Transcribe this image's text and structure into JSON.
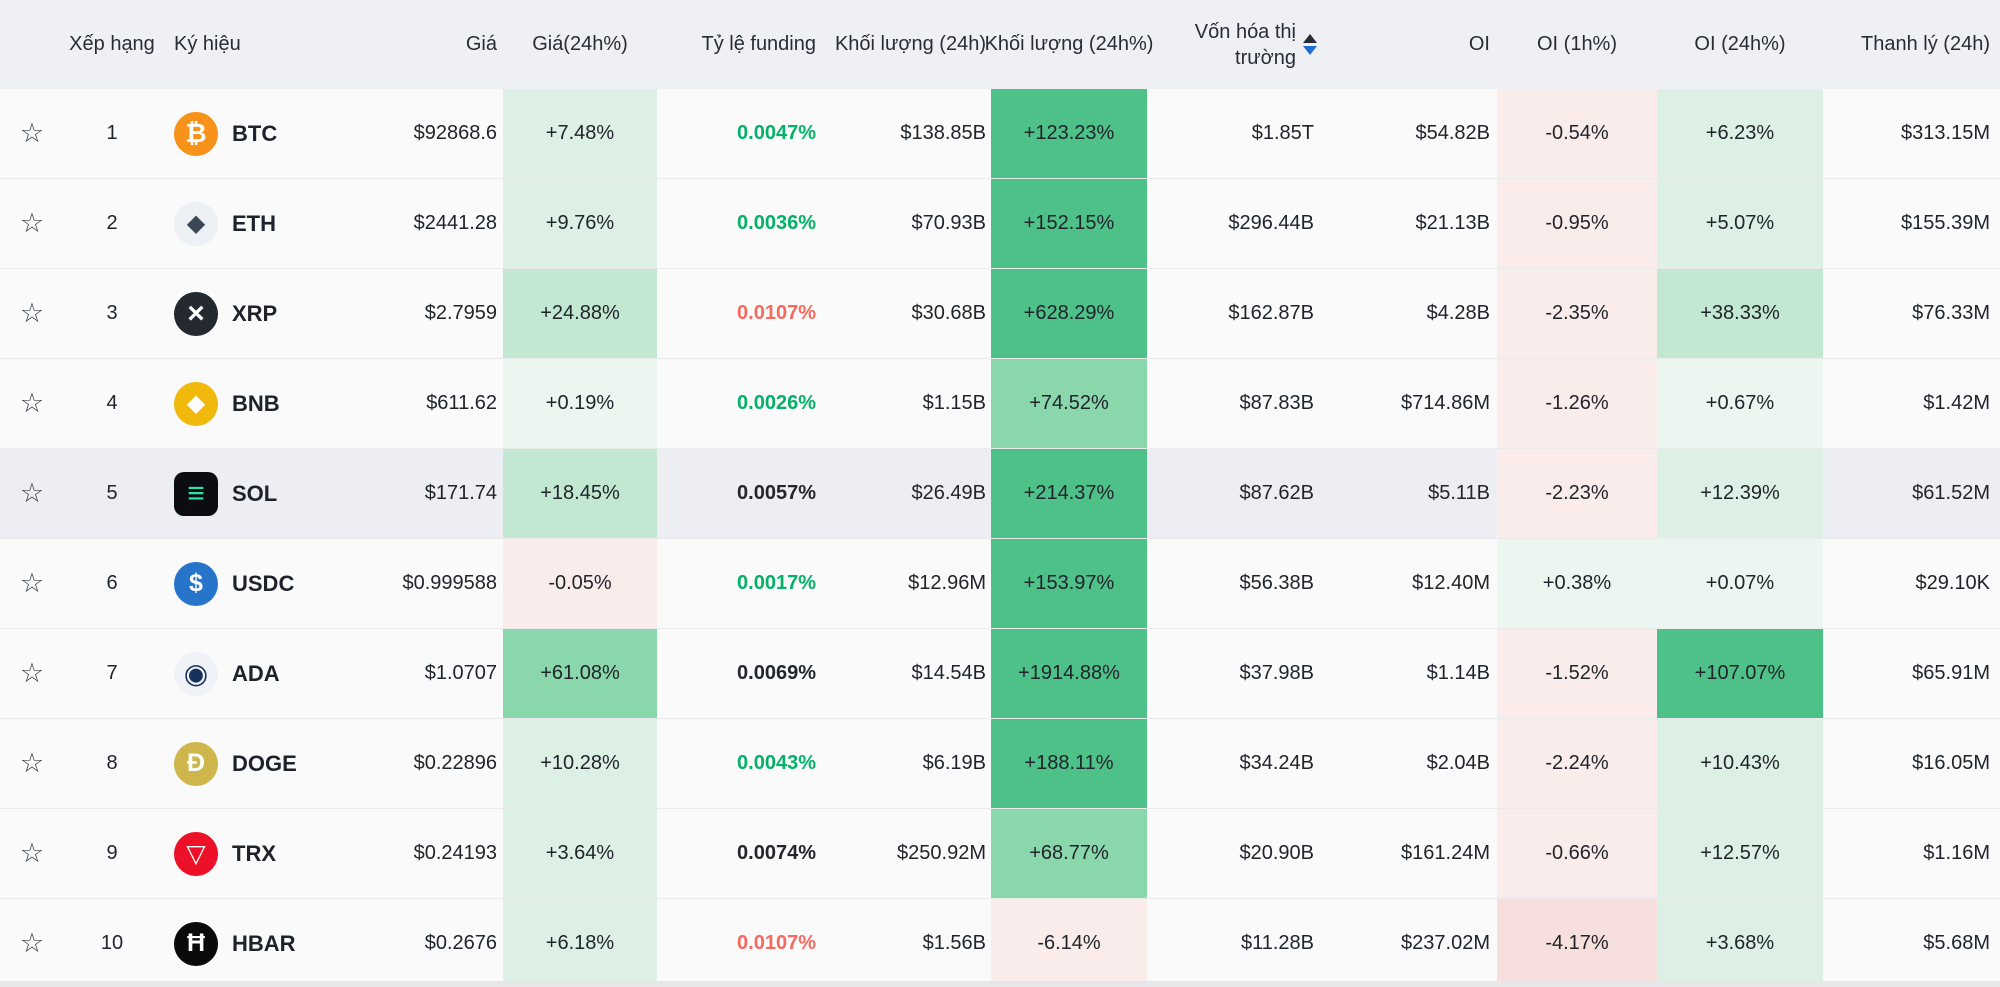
{
  "icons": {
    "star": "☆"
  },
  "sort": {
    "column": "mcap",
    "direction": "desc",
    "up_color": "#262c33",
    "down_color": "#1e6fd2"
  },
  "colors": {
    "header_bg": "#eef0f4",
    "row_bg": "#fafafa",
    "highlight_row_bg": "#eceef4",
    "tint_green_strong": "#4ec189",
    "tint_green_medium": "#8bd7ac",
    "tint_green_light": "#ddf0e5",
    "tint_red_light": "#faeceb",
    "funding_green": "#05b169",
    "funding_red": "#f6695f"
  },
  "table": {
    "header": {
      "rank": "Xếp hạng",
      "symbol": "Ký hiệu",
      "price": "Giá",
      "price24": "Giá(24h%)",
      "funding": "Tỷ lệ funding",
      "vol24": "Khối lượng (24h)",
      "vol24pct": "Khối lượng (24h%)",
      "mcap_line1": "Vốn hóa thị",
      "mcap_line2": "trường",
      "oi": "OI",
      "oi1h": "OI (1h%)",
      "oi24h": "OI (24h%)",
      "liq24": "Thanh lý (24h)"
    },
    "rows": [
      {
        "rank": "1",
        "symbol": "BTC",
        "icon": {
          "glyph": "₿",
          "bg": "#f7931a",
          "fg": "#ffffff",
          "size": 26
        },
        "price": "$92868.6",
        "price24": {
          "text": "+7.48%",
          "tint": "g1"
        },
        "funding": {
          "text": "0.0047%",
          "color": "green"
        },
        "vol24": "$138.85B",
        "vol24pct": {
          "text": "+123.23%",
          "tint": "g4"
        },
        "mcap": "$1.85T",
        "oi": "$54.82B",
        "oi1h": {
          "text": "-0.54%",
          "tint": "r1"
        },
        "oi24h": {
          "text": "+6.23%",
          "tint": "g1"
        },
        "liq24": "$313.15M",
        "highlight": false
      },
      {
        "rank": "2",
        "symbol": "ETH",
        "icon": {
          "glyph": "◆",
          "bg": "#edf0f4",
          "fg": "#3b4754",
          "size": 24
        },
        "price": "$2441.28",
        "price24": {
          "text": "+9.76%",
          "tint": "g1"
        },
        "funding": {
          "text": "0.0036%",
          "color": "green"
        },
        "vol24": "$70.93B",
        "vol24pct": {
          "text": "+152.15%",
          "tint": "g4"
        },
        "mcap": "$296.44B",
        "oi": "$21.13B",
        "oi1h": {
          "text": "-0.95%",
          "tint": "r1"
        },
        "oi24h": {
          "text": "+5.07%",
          "tint": "g1"
        },
        "liq24": "$155.39M",
        "highlight": false
      },
      {
        "rank": "3",
        "symbol": "XRP",
        "icon": {
          "glyph": "×",
          "bg": "#23292f",
          "fg": "#ffffff",
          "size": 30
        },
        "price": "$2.7959",
        "price24": {
          "text": "+24.88%",
          "tint": "g2"
        },
        "funding": {
          "text": "0.0107%",
          "color": "red"
        },
        "vol24": "$30.68B",
        "vol24pct": {
          "text": "+628.29%",
          "tint": "g4"
        },
        "mcap": "$162.87B",
        "oi": "$4.28B",
        "oi1h": {
          "text": "-2.35%",
          "tint": "r1"
        },
        "oi24h": {
          "text": "+38.33%",
          "tint": "g2"
        },
        "liq24": "$76.33M",
        "highlight": false
      },
      {
        "rank": "4",
        "symbol": "BNB",
        "icon": {
          "glyph": "◆",
          "bg": "#f0b90b",
          "fg": "#ffffff",
          "size": 24
        },
        "price": "$611.62",
        "price24": {
          "text": "+0.19%",
          "tint": "g0"
        },
        "funding": {
          "text": "0.0026%",
          "color": "green"
        },
        "vol24": "$1.15B",
        "vol24pct": {
          "text": "+74.52%",
          "tint": "g3"
        },
        "mcap": "$87.83B",
        "oi": "$714.86M",
        "oi1h": {
          "text": "-1.26%",
          "tint": "r1"
        },
        "oi24h": {
          "text": "+0.67%",
          "tint": "g0"
        },
        "liq24": "$1.42M",
        "highlight": false
      },
      {
        "rank": "5",
        "symbol": "SOL",
        "icon": {
          "glyph": "≡",
          "bg": "#0b0d12",
          "fg": "#2ce5a7",
          "size": 30,
          "shape": "square"
        },
        "price": "$171.74",
        "price24": {
          "text": "+18.45%",
          "tint": "g2"
        },
        "funding": {
          "text": "0.0057%",
          "color": "dark"
        },
        "vol24": "$26.49B",
        "vol24pct": {
          "text": "+214.37%",
          "tint": "g4"
        },
        "mcap": "$87.62B",
        "oi": "$5.11B",
        "oi1h": {
          "text": "-2.23%",
          "tint": "r1"
        },
        "oi24h": {
          "text": "+12.39%",
          "tint": "g1"
        },
        "liq24": "$61.52M",
        "highlight": true
      },
      {
        "rank": "6",
        "symbol": "USDC",
        "icon": {
          "glyph": "$",
          "bg": "#2775ca",
          "fg": "#ffffff",
          "size": 25
        },
        "price": "$0.999588",
        "price24": {
          "text": "-0.05%",
          "tint": "r1"
        },
        "funding": {
          "text": "0.0017%",
          "color": "green"
        },
        "vol24": "$12.96M",
        "vol24pct": {
          "text": "+153.97%",
          "tint": "g4"
        },
        "mcap": "$56.38B",
        "oi": "$12.40M",
        "oi1h": {
          "text": "+0.38%",
          "tint": "g0"
        },
        "oi24h": {
          "text": "+0.07%",
          "tint": "g0"
        },
        "liq24": "$29.10K",
        "highlight": false
      },
      {
        "rank": "7",
        "symbol": "ADA",
        "icon": {
          "glyph": "◉",
          "bg": "#f0f2f7",
          "fg": "#16325c",
          "size": 28
        },
        "price": "$1.0707",
        "price24": {
          "text": "+61.08%",
          "tint": "g3"
        },
        "funding": {
          "text": "0.0069%",
          "color": "dark"
        },
        "vol24": "$14.54B",
        "vol24pct": {
          "text": "+1914.88%",
          "tint": "g4"
        },
        "mcap": "$37.98B",
        "oi": "$1.14B",
        "oi1h": {
          "text": "-1.52%",
          "tint": "r1"
        },
        "oi24h": {
          "text": "+107.07%",
          "tint": "g4"
        },
        "liq24": "$65.91M",
        "highlight": false
      },
      {
        "rank": "8",
        "symbol": "DOGE",
        "icon": {
          "glyph": "Ð",
          "bg": "#ceb64c",
          "fg": "#ffffff",
          "size": 25
        },
        "price": "$0.22896",
        "price24": {
          "text": "+10.28%",
          "tint": "g1"
        },
        "funding": {
          "text": "0.0043%",
          "color": "green"
        },
        "vol24": "$6.19B",
        "vol24pct": {
          "text": "+188.11%",
          "tint": "g4"
        },
        "mcap": "$34.24B",
        "oi": "$2.04B",
        "oi1h": {
          "text": "-2.24%",
          "tint": "r1"
        },
        "oi24h": {
          "text": "+10.43%",
          "tint": "g1"
        },
        "liq24": "$16.05M",
        "highlight": false
      },
      {
        "rank": "9",
        "symbol": "TRX",
        "icon": {
          "glyph": "▽",
          "bg": "#ec1028",
          "fg": "#ffffff",
          "size": 25
        },
        "price": "$0.24193",
        "price24": {
          "text": "+3.64%",
          "tint": "g1"
        },
        "funding": {
          "text": "0.0074%",
          "color": "dark"
        },
        "vol24": "$250.92M",
        "vol24pct": {
          "text": "+68.77%",
          "tint": "g3"
        },
        "mcap": "$20.90B",
        "oi": "$161.24M",
        "oi1h": {
          "text": "-0.66%",
          "tint": "r1"
        },
        "oi24h": {
          "text": "+12.57%",
          "tint": "g1"
        },
        "liq24": "$1.16M",
        "highlight": false
      },
      {
        "rank": "10",
        "symbol": "HBAR",
        "icon": {
          "glyph": "Ħ",
          "bg": "#0a0a0a",
          "fg": "#ffffff",
          "size": 25
        },
        "price": "$0.2676",
        "price24": {
          "text": "+6.18%",
          "tint": "g1"
        },
        "funding": {
          "text": "0.0107%",
          "color": "red"
        },
        "vol24": "$1.56B",
        "vol24pct": {
          "text": "-6.14%",
          "tint": "r1"
        },
        "mcap": "$11.28B",
        "oi": "$237.02M",
        "oi1h": {
          "text": "-4.17%",
          "tint": "r2"
        },
        "oi24h": {
          "text": "+3.68%",
          "tint": "g1"
        },
        "liq24": "$5.68M",
        "highlight": false
      }
    ]
  }
}
